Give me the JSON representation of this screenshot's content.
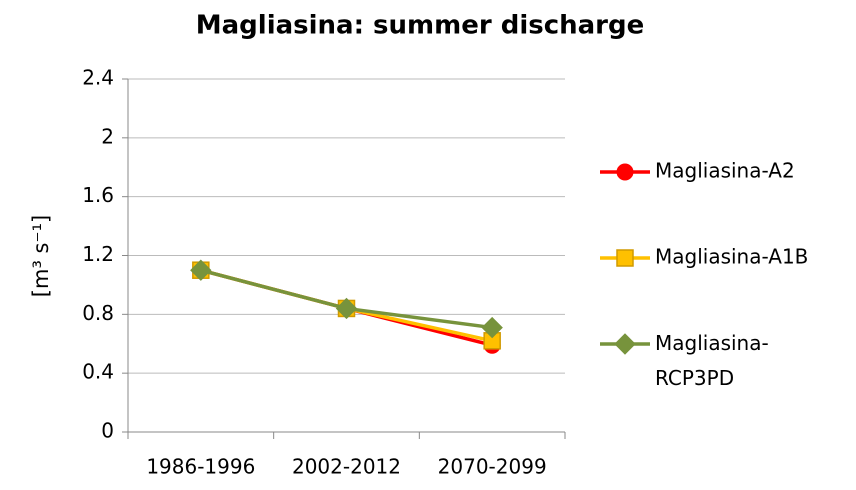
{
  "chart_data": {
    "type": "line",
    "title": "Magliasina: summer discharge",
    "y_label": "[m³ s⁻¹]",
    "categories": [
      "1986-1996",
      "2002-2012",
      "2070-2099"
    ],
    "series": [
      {
        "name": "Magliasina-A2",
        "color": "#ff0000",
        "marker": "circle",
        "values": [
          1.1,
          0.84,
          0.59
        ]
      },
      {
        "name": "Magliasina-A1B",
        "color": "#ffc000",
        "marker": "square",
        "values": [
          1.1,
          0.84,
          0.62
        ]
      },
      {
        "name": "Magliasina-RCP3PD",
        "color": "#77933c",
        "marker": "diamond",
        "values": [
          1.1,
          0.84,
          0.71
        ]
      }
    ],
    "ylim": [
      0,
      2.4
    ],
    "yticks": [
      0,
      0.4,
      0.8,
      1.2,
      1.6,
      2,
      2.4
    ],
    "grid": true,
    "legend": "right"
  }
}
